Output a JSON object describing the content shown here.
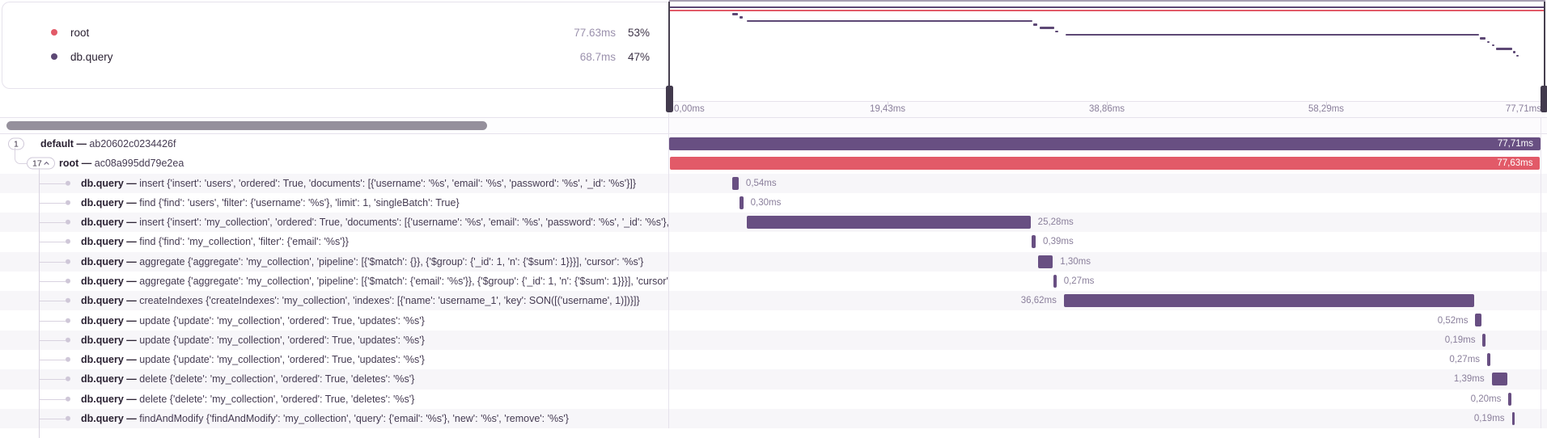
{
  "legend": {
    "items": [
      {
        "name": "root",
        "color": "#e25a68",
        "duration": "77.63ms",
        "percent": "53%"
      },
      {
        "name": "db.query",
        "color": "#5d4875",
        "duration": "68.7ms",
        "percent": "47%"
      }
    ]
  },
  "minimap": {
    "axis_labels": [
      "0,00ms",
      "19,43ms",
      "38,86ms",
      "58,29ms",
      "77,71ms"
    ]
  },
  "trace": {
    "total_ms": 77.71,
    "sep": "—",
    "rows": [
      {
        "badge": "1",
        "expanded": false,
        "op": "default",
        "desc": "ab20602c0234426f",
        "depth": 0,
        "color": "purple",
        "start_ms": 0.0,
        "dur_ms": 77.71,
        "dur_label": "77,71ms",
        "label_side": "inside"
      },
      {
        "badge": "17",
        "expanded": true,
        "op": "root",
        "desc": "ac08a995dd79e2ea",
        "depth": 1,
        "color": "red",
        "start_ms": 0.04,
        "dur_ms": 77.63,
        "dur_label": "77,63ms",
        "label_side": "inside"
      },
      {
        "op": "db.query",
        "desc": "insert {'insert': 'users', 'ordered': True, 'documents': [{'username': '%s', 'email': '%s', 'password': '%s', '_id': '%s'}]}",
        "depth": 2,
        "color": "purple",
        "start_ms": 5.66,
        "dur_ms": 0.54,
        "dur_label": "0,54ms",
        "label_side": "right"
      },
      {
        "op": "db.query",
        "desc": "find {'find': 'users', 'filter': {'username': '%s'}, 'limit': 1, 'singleBatch': True}",
        "depth": 2,
        "color": "purple",
        "start_ms": 6.31,
        "dur_ms": 0.3,
        "dur_label": "0,30ms",
        "label_side": "right"
      },
      {
        "op": "db.query",
        "desc": "insert {'insert': 'my_collection', 'ordered': True, 'documents': [{'username': '%s', 'email': '%s', 'password': '%s', '_id': '%s'}, {'username': '%s', 'email': '%s'...",
        "depth": 2,
        "color": "purple",
        "start_ms": 6.95,
        "dur_ms": 25.28,
        "dur_label": "25,28ms",
        "label_side": "right"
      },
      {
        "op": "db.query",
        "desc": "find {'find': 'my_collection', 'filter': {'email': '%s'}}",
        "depth": 2,
        "color": "purple",
        "start_ms": 32.3,
        "dur_ms": 0.39,
        "dur_label": "0,39ms",
        "label_side": "right"
      },
      {
        "op": "db.query",
        "desc": "aggregate {'aggregate': 'my_collection', 'pipeline': [{'$match': {}}, {'$group': {'_id': 1, 'n': {'$sum': 1}}}], 'cursor': '%s'}",
        "depth": 2,
        "color": "purple",
        "start_ms": 32.92,
        "dur_ms": 1.3,
        "dur_label": "1,30ms",
        "label_side": "right"
      },
      {
        "op": "db.query",
        "desc": "aggregate {'aggregate': 'my_collection', 'pipeline': [{'$match': {'email': '%s'}}, {'$group': {'_id': 1, 'n': {'$sum': 1}}}], 'cursor': '%s'}",
        "depth": 2,
        "color": "purple",
        "start_ms": 34.27,
        "dur_ms": 0.27,
        "dur_label": "0,27ms",
        "label_side": "right"
      },
      {
        "op": "db.query",
        "desc": "createIndexes {'createIndexes': 'my_collection', 'indexes': [{'name': 'username_1', 'key': SON([('username', 1)])}]}",
        "depth": 2,
        "color": "purple",
        "start_ms": 35.2,
        "dur_ms": 36.62,
        "dur_label": "36,62ms",
        "label_side": "left"
      },
      {
        "op": "db.query",
        "desc": "update {'update': 'my_collection', 'ordered': True, 'updates': '%s'}",
        "depth": 2,
        "color": "purple",
        "start_ms": 71.9,
        "dur_ms": 0.52,
        "dur_label": "0,52ms",
        "label_side": "left"
      },
      {
        "op": "db.query",
        "desc": "update {'update': 'my_collection', 'ordered': True, 'updates': '%s'}",
        "depth": 2,
        "color": "purple",
        "start_ms": 72.55,
        "dur_ms": 0.19,
        "dur_label": "0,19ms",
        "label_side": "left"
      },
      {
        "op": "db.query",
        "desc": "update {'update': 'my_collection', 'ordered': True, 'updates': '%s'}",
        "depth": 2,
        "color": "purple",
        "start_ms": 72.95,
        "dur_ms": 0.27,
        "dur_label": "0,27ms",
        "label_side": "left"
      },
      {
        "op": "db.query",
        "desc": "delete {'delete': 'my_collection', 'ordered': True, 'deletes': '%s'}",
        "depth": 2,
        "color": "purple",
        "start_ms": 73.35,
        "dur_ms": 1.39,
        "dur_label": "1,39ms",
        "label_side": "left"
      },
      {
        "op": "db.query",
        "desc": "delete {'delete': 'my_collection', 'ordered': True, 'deletes': '%s'}",
        "depth": 2,
        "color": "purple",
        "start_ms": 74.85,
        "dur_ms": 0.2,
        "dur_label": "0,20ms",
        "label_side": "left"
      },
      {
        "op": "db.query",
        "desc": "findAndModify {'findAndModify': 'my_collection', 'query': {'email': '%s'}, 'new': '%s', 'remove': '%s'}",
        "depth": 2,
        "color": "purple",
        "start_ms": 75.15,
        "dur_ms": 0.19,
        "dur_label": "0,19ms",
        "label_side": "left"
      }
    ]
  }
}
